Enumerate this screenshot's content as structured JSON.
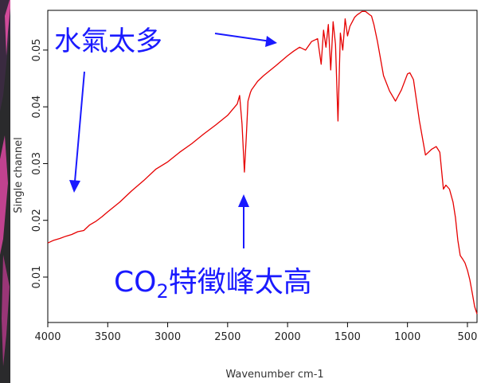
{
  "chart_data": {
    "type": "line",
    "title": "",
    "xlabel": "Wavenumber cm-1",
    "ylabel": "Single channel",
    "xlim": [
      4000,
      420
    ],
    "ylim": [
      0.002,
      0.057
    ],
    "x_reversed": true,
    "xticks": [
      4000,
      3500,
      3000,
      2500,
      2000,
      1500,
      1000,
      500
    ],
    "yticks": [
      0.01,
      0.02,
      0.03,
      0.04,
      0.05
    ],
    "ytick_labels": [
      "0.01",
      "0.02",
      "0.03",
      "0.04",
      "0.05"
    ],
    "grid": false,
    "series": [
      {
        "color": "#e60000",
        "x": [
          4000,
          3950,
          3900,
          3850,
          3800,
          3750,
          3700,
          3650,
          3600,
          3550,
          3500,
          3400,
          3300,
          3200,
          3100,
          3000,
          2900,
          2800,
          2700,
          2600,
          2500,
          2420,
          2400,
          2380,
          2360,
          2345,
          2330,
          2310,
          2300,
          2250,
          2200,
          2100,
          2000,
          1950,
          1900,
          1850,
          1800,
          1750,
          1720,
          1700,
          1680,
          1660,
          1640,
          1620,
          1600,
          1580,
          1560,
          1540,
          1520,
          1500,
          1480,
          1460,
          1440,
          1420,
          1400,
          1380,
          1350,
          1320,
          1300,
          1280,
          1250,
          1200,
          1150,
          1100,
          1050,
          1000,
          980,
          950,
          900,
          850,
          800,
          760,
          730,
          700,
          680,
          650,
          620,
          600,
          580,
          560,
          540,
          520,
          500,
          480,
          460,
          440,
          420
        ],
        "y": [
          0.016,
          0.0165,
          0.0168,
          0.0172,
          0.0175,
          0.018,
          0.0182,
          0.0192,
          0.0198,
          0.0206,
          0.0215,
          0.0232,
          0.0252,
          0.027,
          0.029,
          0.0303,
          0.032,
          0.0335,
          0.0352,
          0.0368,
          0.0385,
          0.0405,
          0.042,
          0.037,
          0.0285,
          0.0345,
          0.041,
          0.0425,
          0.043,
          0.0445,
          0.0455,
          0.0472,
          0.049,
          0.0498,
          0.0505,
          0.05,
          0.0515,
          0.052,
          0.0475,
          0.0535,
          0.0505,
          0.0545,
          0.0465,
          0.055,
          0.051,
          0.0375,
          0.053,
          0.05,
          0.0555,
          0.0525,
          0.0542,
          0.055,
          0.0558,
          0.0562,
          0.0565,
          0.0568,
          0.0568,
          0.0563,
          0.056,
          0.0545,
          0.0515,
          0.0455,
          0.0428,
          0.041,
          0.043,
          0.0458,
          0.046,
          0.0448,
          0.0375,
          0.0315,
          0.0325,
          0.033,
          0.032,
          0.0255,
          0.0262,
          0.0255,
          0.0232,
          0.0205,
          0.0165,
          0.0138,
          0.0132,
          0.0125,
          0.0112,
          0.0095,
          0.0072,
          0.0048,
          0.0035
        ]
      }
    ],
    "annotations": [
      {
        "text": "水氣太多"
      },
      {
        "text": "CO",
        "sub": "2",
        "suffix": "特徵峰太高"
      }
    ]
  }
}
